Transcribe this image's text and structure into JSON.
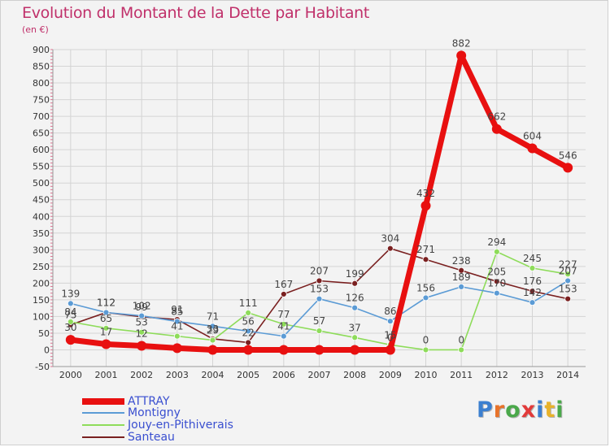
{
  "chart_data": {
    "type": "line",
    "title": "Evolution du Montant de la Dette par Habitant",
    "subtitle": "(en €)",
    "xlabel": "",
    "ylabel": "",
    "x": [
      "2000",
      "2001",
      "2002",
      "2003",
      "2004",
      "2005",
      "2006",
      "2007",
      "2008",
      "2009",
      "2010",
      "2011",
      "2012",
      "2013",
      "2014"
    ],
    "ylim": [
      -50,
      900
    ],
    "yticks": [
      -50,
      0,
      50,
      100,
      150,
      200,
      250,
      300,
      350,
      400,
      450,
      500,
      550,
      600,
      650,
      700,
      750,
      800,
      850,
      900
    ],
    "grid": true,
    "legend_position": "bottom-left",
    "series": [
      {
        "name": "ATTRAY",
        "color": "#e81010",
        "values": [
          30,
          17,
          12,
          5,
          0,
          0,
          0,
          0,
          0,
          0,
          432,
          882,
          662,
          604,
          546
        ],
        "labels": [
          "30",
          "17",
          "12",
          "",
          "",
          "",
          "",
          "",
          "",
          "0",
          "432",
          "882",
          "662",
          "604",
          "546"
        ]
      },
      {
        "name": "Montigny",
        "color": "#5b9bd5",
        "values": [
          139,
          112,
          102,
          85,
          71,
          56,
          41,
          153,
          126,
          86,
          156,
          189,
          170,
          142,
          207
        ],
        "labels": [
          "139",
          "112",
          "102",
          "85",
          "71",
          "56",
          "41",
          "153",
          "126",
          "86",
          "156",
          "189",
          "170",
          "142",
          "207"
        ]
      },
      {
        "name": "Jouy-en-Pithiverais",
        "color": "#8edc5a",
        "values": [
          84,
          65,
          53,
          41,
          29,
          111,
          77,
          57,
          37,
          15,
          0,
          0,
          294,
          245,
          227
        ],
        "labels": [
          "84",
          "65",
          "53",
          "41",
          "29",
          "111",
          "77",
          "57",
          "37",
          "15",
          "0",
          "0",
          "294",
          "245",
          "227"
        ]
      },
      {
        "name": "Santeau",
        "color": "#7a2020",
        "values": [
          75,
          112,
          99,
          91,
          33,
          22,
          167,
          207,
          199,
          304,
          271,
          238,
          205,
          176,
          153
        ],
        "labels": [
          "75",
          "112",
          "99",
          "91",
          "33",
          "22",
          "167",
          "207",
          "199",
          "304",
          "271",
          "238",
          "205",
          "176",
          "153"
        ]
      }
    ]
  },
  "brand": {
    "letters": [
      "P",
      "r",
      "o",
      "x",
      "i",
      "t",
      "i"
    ],
    "colors": [
      "#3b7fd0",
      "#e8732a",
      "#4aa84a",
      "#e23a3a",
      "#3b7fd0",
      "#e8b22a",
      "#4aa84a"
    ]
  }
}
